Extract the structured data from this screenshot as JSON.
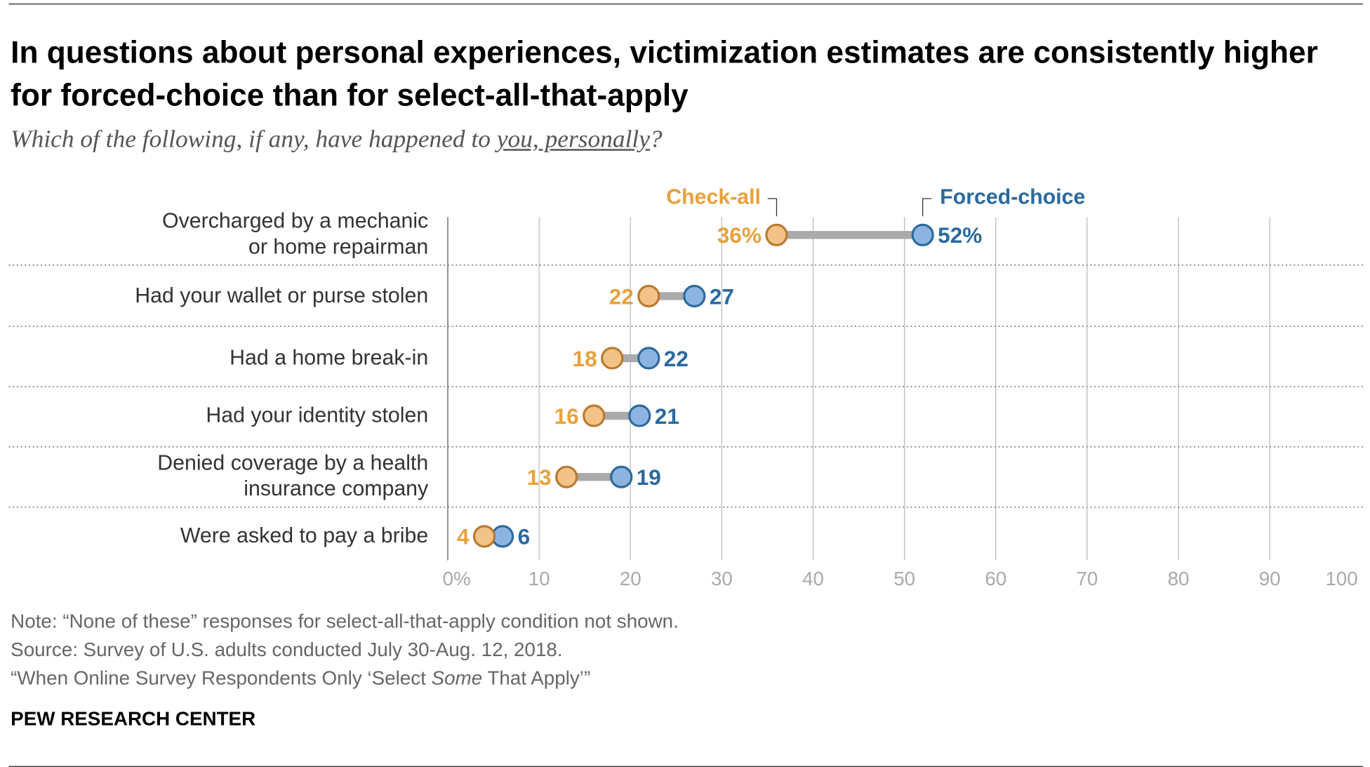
{
  "title": "In questions about personal experiences, victimization estimates are consistently higher for forced-choice than for select-all-that-apply",
  "subtitle": {
    "before": "Which of the following, if any, have happened to ",
    "underlined": "you, personally",
    "after": "?"
  },
  "chart_data": {
    "type": "dot-plot",
    "categories": [
      "Overcharged by a mechanic or home repairman",
      "Had your wallet or purse stolen",
      "Had a home break-in",
      "Had your identity stolen",
      "Denied coverage by a health insurance company",
      "Were asked to pay a bribe"
    ],
    "category_lines": [
      [
        "Overcharged by a mechanic",
        "or home repairman"
      ],
      [
        "Had your wallet or purse stolen"
      ],
      [
        "Had a home break-in"
      ],
      [
        "Had your identity stolen"
      ],
      [
        "Denied coverage by a health",
        "insurance company"
      ],
      [
        "Were asked to pay a bribe"
      ]
    ],
    "series": [
      {
        "name": "Check-all",
        "color": "#e8a13c",
        "fill": "#f2c287",
        "stroke": "#b87a30",
        "values": [
          36,
          22,
          18,
          16,
          13,
          4
        ]
      },
      {
        "name": "Forced-choice",
        "color": "#2a6a9e",
        "fill": "#8db4e0",
        "stroke": "#2a6a9e",
        "values": [
          52,
          27,
          22,
          21,
          19,
          6
        ]
      }
    ],
    "xlim": [
      0,
      100
    ],
    "xticks": [
      "0%",
      "10",
      "20",
      "30",
      "40",
      "50",
      "60",
      "70",
      "80",
      "90",
      "100"
    ],
    "grid": true,
    "connector_color": "#aaaaaa",
    "first_row_labels": [
      "36%",
      "52%"
    ]
  },
  "notes": [
    "Note: “None of these” responses for select-all-that-apply condition not shown.",
    "Source: Survey of U.S. adults conducted July 30-Aug. 12, 2018.",
    "“When Online Survey Respondents Only ‘Select Some That Apply’”"
  ],
  "brand": "PEW RESEARCH CENTER"
}
